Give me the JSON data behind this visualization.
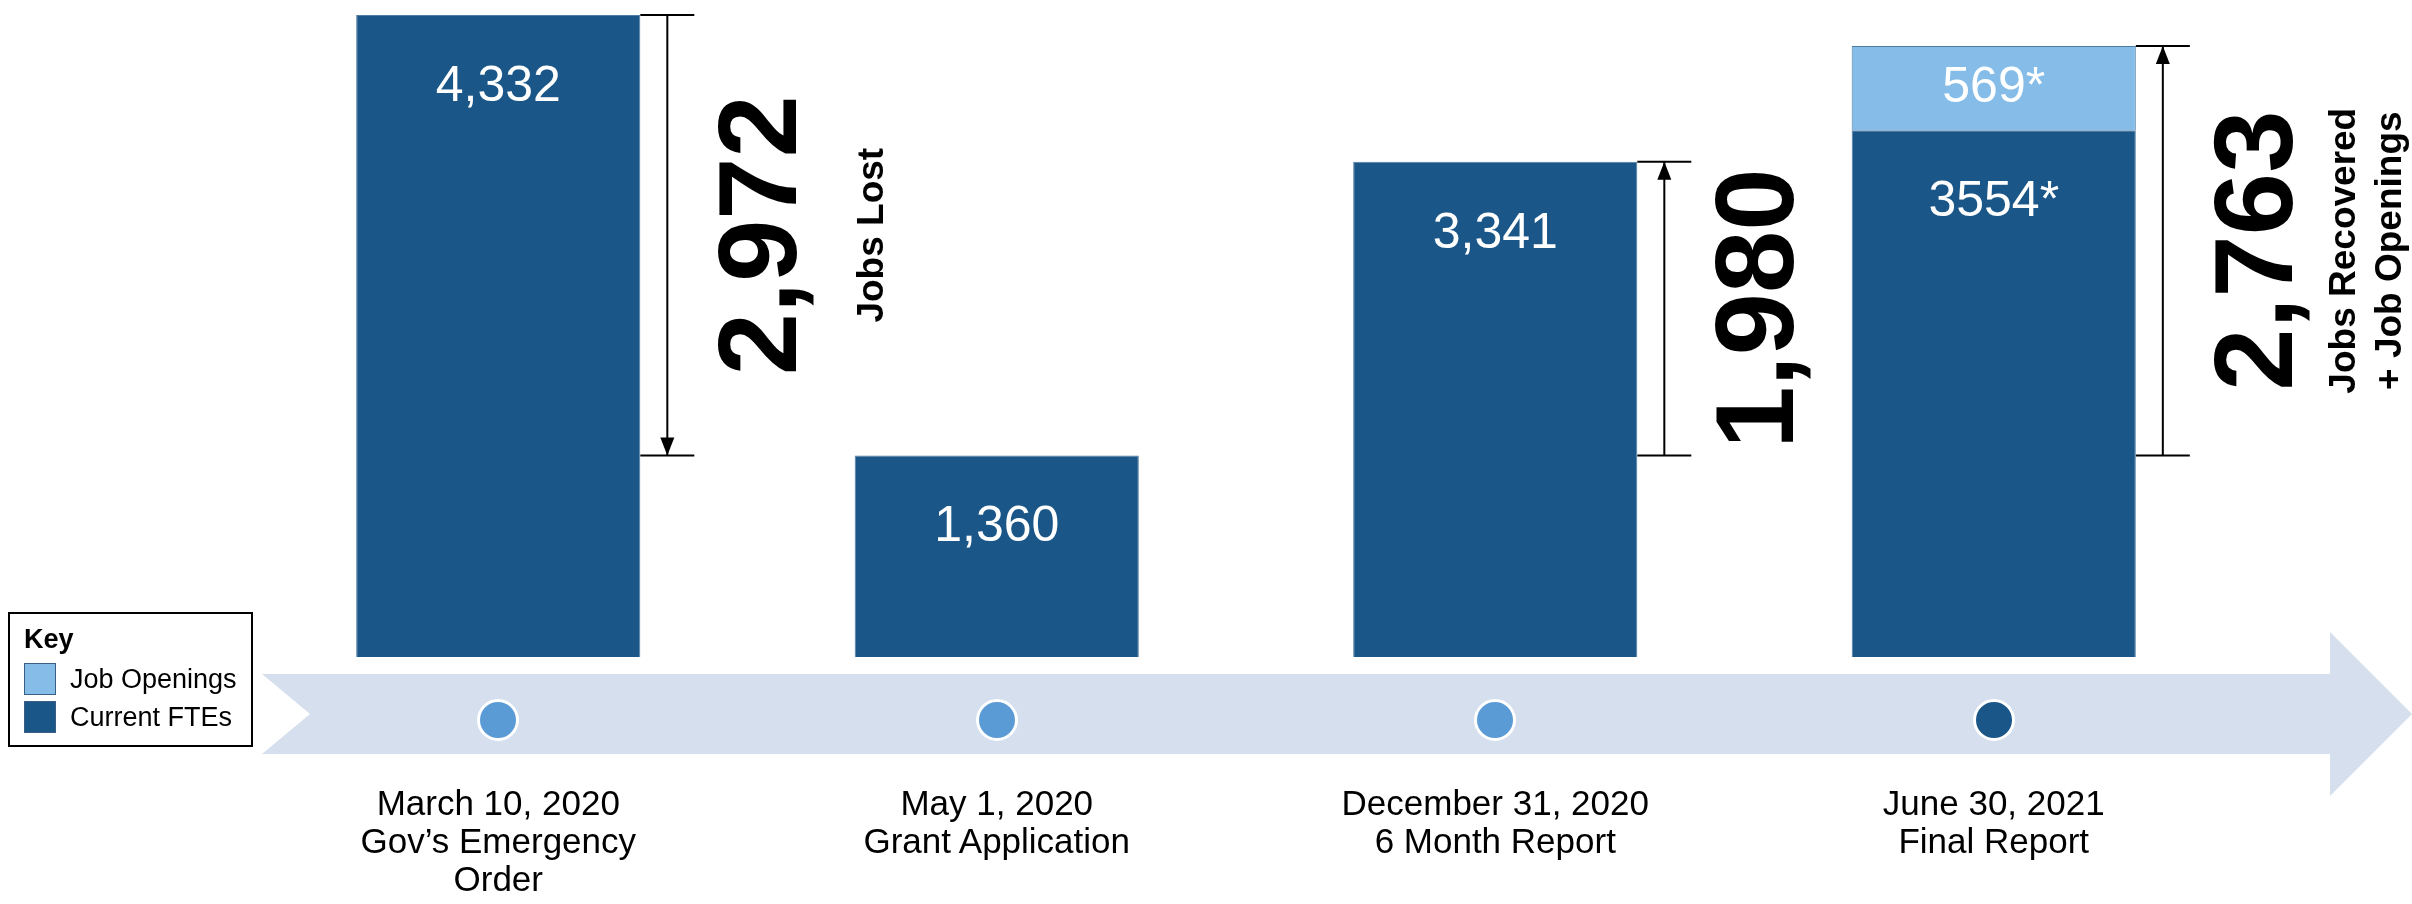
{
  "chart_data": {
    "type": "bar",
    "stacked": true,
    "legend": "left",
    "legend_title": "Key",
    "tick_labels": "x",
    "categories": [
      "March 10, 2020\nGov’s Emergency\nOrder",
      "May 1, 2020\nGrant Application",
      "December 31, 2020\n6 Month Report",
      "June 30, 2021\nFinal Report"
    ],
    "series": [
      {
        "name": "Current FTEs",
        "color": "#1a5788",
        "values": [
          4332,
          1360,
          3341,
          3554
        ],
        "value_labels": [
          "4,332",
          "1,360",
          "3,341",
          "3554*"
        ]
      },
      {
        "name": "Job Openings",
        "color": "#85bde8",
        "values": [
          null,
          null,
          null,
          569
        ],
        "value_labels": [
          null,
          null,
          null,
          "569*"
        ]
      }
    ],
    "annotations": [
      {
        "text": "2,972",
        "x": "March 10, 2020\nGov’s Emergency\nOrder",
        "y": 4332
      },
      "Jobs Lost",
      {
        "text": "1,980",
        "x": "December 31, 2020\n6 Month Report",
        "y": 3341
      },
      {
        "text": "2,763",
        "x": "June 30, 2021\nFinal Report",
        "y": 4123
      },
      "Jobs Recovered",
      "+ Job Openings"
    ]
  }
}
